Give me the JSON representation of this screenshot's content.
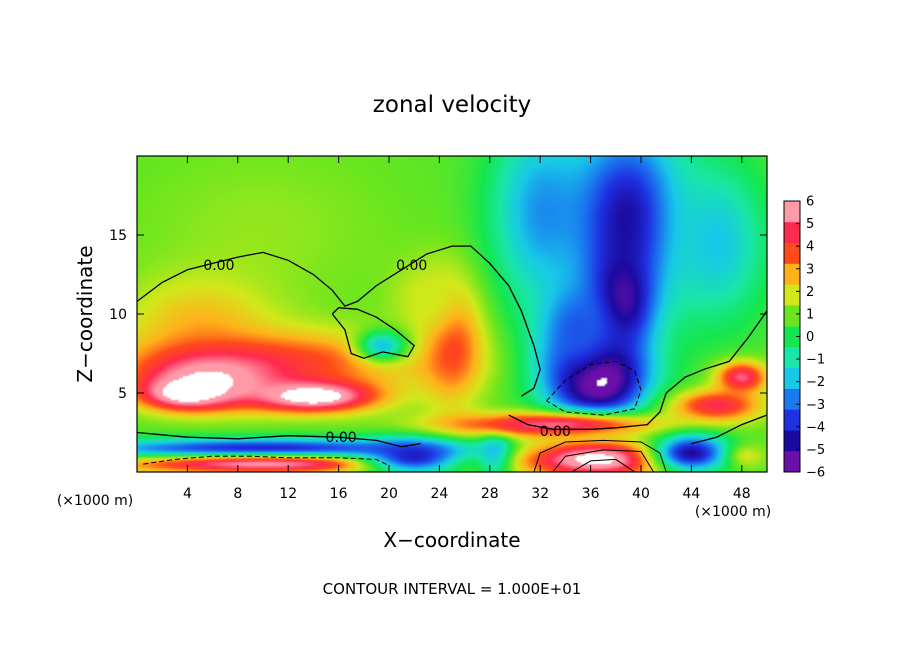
{
  "chart_data": {
    "type": "heatmap",
    "title": "zonal velocity",
    "xlabel": "X−coordinate",
    "ylabel": "Z−coordinate",
    "x_unit_label": "(×1000 m)",
    "y_unit_label": "(×1000 m)",
    "footer": "CONTOUR INTERVAL = 1.000E+01",
    "xlim": [
      0,
      50
    ],
    "ylim": [
      0,
      20
    ],
    "x_ticks": [
      4,
      8,
      12,
      16,
      20,
      24,
      28,
      32,
      36,
      40,
      44,
      48
    ],
    "x_tick_labels": [
      "4",
      "8",
      "12",
      "16",
      "20",
      "24",
      "28",
      "32",
      "36",
      "40",
      "44",
      "48"
    ],
    "y_ticks": [
      5,
      10,
      15
    ],
    "y_tick_labels": [
      "5",
      "10",
      "15"
    ],
    "colorbar": {
      "min": -6,
      "max": 6,
      "ticks": [
        6,
        5,
        4,
        3,
        2,
        1,
        0,
        -1,
        -2,
        -3,
        -4,
        -5,
        -6
      ],
      "tick_labels": [
        "6",
        "5",
        "4",
        "3",
        "2",
        "1",
        "0",
        "−1",
        "−2",
        "−3",
        "−4",
        "−5",
        "−6"
      ]
    },
    "contour_labels": [
      {
        "text": "0.00",
        "x": 6.5,
        "z": 13.1
      },
      {
        "text": "0.00",
        "x": 21.8,
        "z": 13.1
      },
      {
        "text": "0.00",
        "x": 16.2,
        "z": 2.2
      },
      {
        "text": "0.00",
        "x": 33.2,
        "z": 2.6
      }
    ],
    "zero_contours": [
      [
        [
          0,
          10.8
        ],
        [
          2,
          12.0
        ],
        [
          4,
          12.8
        ],
        [
          6,
          13.2
        ],
        [
          8,
          13.6
        ],
        [
          10,
          13.9
        ],
        [
          12,
          13.4
        ],
        [
          14,
          12.5
        ],
        [
          15.5,
          11.5
        ],
        [
          16.5,
          10.5
        ],
        [
          17.5,
          10.8
        ],
        [
          19,
          11.8
        ],
        [
          21,
          12.8
        ],
        [
          23,
          13.8
        ],
        [
          25,
          14.3
        ],
        [
          26.5,
          14.3
        ],
        [
          28,
          13.2
        ],
        [
          29.5,
          11.8
        ],
        [
          30.5,
          10.2
        ],
        [
          31.5,
          8.0
        ],
        [
          32,
          6.5
        ],
        [
          31.5,
          5.3
        ],
        [
          30.5,
          4.8
        ]
      ],
      [
        [
          15.5,
          10.0
        ],
        [
          16.5,
          9.0
        ],
        [
          17,
          7.5
        ],
        [
          18,
          7.2
        ],
        [
          19.5,
          7.6
        ],
        [
          21.5,
          7.3
        ],
        [
          22,
          8.0
        ],
        [
          20.5,
          9.0
        ],
        [
          19,
          9.8
        ],
        [
          17.5,
          10.3
        ],
        [
          16,
          10.4
        ],
        [
          15.5,
          10.0
        ]
      ],
      [
        [
          0,
          2.5
        ],
        [
          4,
          2.2
        ],
        [
          8,
          2.1
        ],
        [
          12,
          2.3
        ],
        [
          16,
          2.2
        ],
        [
          19,
          2.0
        ],
        [
          21,
          1.6
        ],
        [
          22.5,
          1.8
        ]
      ],
      [
        [
          29.5,
          3.6
        ],
        [
          31,
          3.0
        ],
        [
          33,
          2.7
        ],
        [
          36,
          2.7
        ],
        [
          38,
          2.8
        ],
        [
          40.5,
          3.0
        ],
        [
          41.5,
          3.8
        ],
        [
          42,
          5.0
        ],
        [
          43.5,
          6.0
        ],
        [
          45,
          6.5
        ],
        [
          47,
          7.0
        ],
        [
          48.5,
          8.5
        ],
        [
          50,
          10.2
        ]
      ],
      [
        [
          44,
          1.8
        ],
        [
          46,
          2.2
        ],
        [
          48,
          3.0
        ],
        [
          50,
          3.6
        ]
      ]
    ],
    "negative_contours": [
      [
        [
          0.5,
          0.5
        ],
        [
          3,
          0.8
        ],
        [
          6,
          1.0
        ],
        [
          9,
          1.0
        ],
        [
          12,
          0.9
        ],
        [
          16,
          0.9
        ],
        [
          19,
          0.8
        ],
        [
          20,
          0.4
        ]
      ],
      [
        [
          32.5,
          4.5
        ],
        [
          34,
          5.8
        ],
        [
          36,
          6.8
        ],
        [
          38,
          7.0
        ],
        [
          39.5,
          6.4
        ],
        [
          40,
          5.2
        ],
        [
          39.5,
          4.0
        ],
        [
          37,
          3.6
        ],
        [
          34,
          3.8
        ],
        [
          32.5,
          4.5
        ]
      ]
    ],
    "positive_contours": [
      [
        [
          31.5,
          0
        ],
        [
          32,
          1.2
        ],
        [
          34,
          1.9
        ],
        [
          37,
          2.0
        ],
        [
          40,
          1.9
        ],
        [
          41.5,
          1.2
        ],
        [
          42,
          0
        ]
      ],
      [
        [
          33,
          0
        ],
        [
          34,
          1.0
        ],
        [
          37,
          1.4
        ],
        [
          40,
          1.3
        ],
        [
          41,
          0
        ]
      ],
      [
        [
          34.5,
          0
        ],
        [
          36,
          0.7
        ],
        [
          38,
          0.8
        ],
        [
          39.5,
          0
        ]
      ]
    ],
    "field_blobs": [
      {
        "x": 10,
        "z": 15.5,
        "rx": 10,
        "rz": 5,
        "v": 1.4
      },
      {
        "x": 5,
        "z": 9.5,
        "rx": 6,
        "rz": 3,
        "v": 2.8
      },
      {
        "x": 12,
        "z": 7.0,
        "rx": 12,
        "rz": 2.0,
        "v": 4.0
      },
      {
        "x": 6,
        "z": 6.0,
        "rx": 6,
        "rz": 1.8,
        "v": 6.5
      },
      {
        "x": 14,
        "z": 4.8,
        "rx": 5,
        "rz": 1.0,
        "v": 7.5
      },
      {
        "x": 4,
        "z": 5.0,
        "rx": 3.5,
        "rz": 1.0,
        "v": 7.5
      },
      {
        "x": 25,
        "z": 8.3,
        "rx": 2.5,
        "rz": 3.8,
        "v": 4.5
      },
      {
        "x": 23,
        "z": 11.0,
        "rx": 3,
        "rz": 2.5,
        "v": 2.0
      },
      {
        "x": 19.5,
        "z": 8.0,
        "rx": 2,
        "rz": 1.0,
        "v": -2.0
      },
      {
        "x": 10,
        "z": 1.4,
        "rx": 14,
        "rz": 0.7,
        "v": -5.0
      },
      {
        "x": 10,
        "z": 0.5,
        "rx": 12,
        "rz": 0.6,
        "v": 6.0
      },
      {
        "x": 22,
        "z": 1.0,
        "rx": 4,
        "rz": 1.2,
        "v": -4.5
      },
      {
        "x": 28.5,
        "z": 1.2,
        "rx": 1.5,
        "rz": 1.5,
        "v": -3.5
      },
      {
        "x": 32,
        "z": 16.5,
        "rx": 4,
        "rz": 6,
        "v": -2.5
      },
      {
        "x": 39,
        "z": 16,
        "rx": 4.5,
        "rz": 6,
        "v": -5.0
      },
      {
        "x": 38.5,
        "z": 11,
        "rx": 2.5,
        "rz": 3,
        "v": -6.0
      },
      {
        "x": 36.5,
        "z": 6.0,
        "rx": 4,
        "rz": 2.8,
        "v": -7.5
      },
      {
        "x": 35,
        "z": 9.0,
        "rx": 3,
        "rz": 3,
        "v": -3.5
      },
      {
        "x": 33,
        "z": 3.0,
        "rx": 9,
        "rz": 0.8,
        "v": 5.5
      },
      {
        "x": 36.5,
        "z": 0.8,
        "rx": 6,
        "rz": 1.2,
        "v": 7.0
      },
      {
        "x": 46,
        "z": 14.5,
        "rx": 4,
        "rz": 5,
        "v": -2.0
      },
      {
        "x": 46,
        "z": 4.2,
        "rx": 3.5,
        "rz": 1.0,
        "v": 5.0
      },
      {
        "x": 48,
        "z": 6.0,
        "rx": 2,
        "rz": 1.0,
        "v": 5.5
      },
      {
        "x": 44,
        "z": 1.2,
        "rx": 3,
        "rz": 1.2,
        "v": -5.0
      },
      {
        "x": 48.5,
        "z": 1.0,
        "rx": 1.5,
        "rz": 0.8,
        "v": 2.0
      }
    ]
  }
}
